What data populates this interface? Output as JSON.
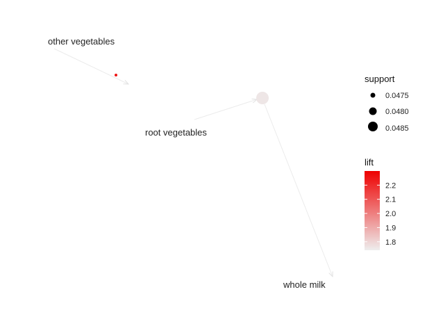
{
  "graph": {
    "nodes": [
      {
        "id": "other",
        "label": "other vegetables",
        "kind": "item"
      },
      {
        "id": "root",
        "label": "root vegetables",
        "kind": "item"
      },
      {
        "id": "milk",
        "label": "whole milk",
        "kind": "item"
      },
      {
        "id": "rule1",
        "kind": "rule",
        "support": 0.0474,
        "lift": 2.25
      },
      {
        "id": "rule2",
        "kind": "rule",
        "support": 0.0489,
        "lift": 1.76
      }
    ],
    "edges": [
      {
        "from": "other",
        "to": "rule1"
      },
      {
        "from": "root",
        "to": "rule2"
      },
      {
        "from": "rule2",
        "to": "milk"
      }
    ]
  },
  "legend": {
    "support": {
      "title": "support",
      "entries": [
        {
          "label": "0.0475",
          "value": 0.0475
        },
        {
          "label": "0.0480",
          "value": 0.048
        },
        {
          "label": "0.0485",
          "value": 0.0485
        }
      ]
    },
    "lift": {
      "title": "lift",
      "low_color": "#eeeeee",
      "high_color": "#ee0000",
      "min": 1.74,
      "max": 2.3,
      "ticks": [
        {
          "label": "2.2",
          "value": 2.2
        },
        {
          "label": "2.1",
          "value": 2.1
        },
        {
          "label": "2.0",
          "value": 2.0
        },
        {
          "label": "1.9",
          "value": 1.9
        },
        {
          "label": "1.8",
          "value": 1.8
        }
      ]
    }
  },
  "colors": {
    "edge": "#ebebeb",
    "label_text": "#222222",
    "legend_marker": "#000000"
  }
}
